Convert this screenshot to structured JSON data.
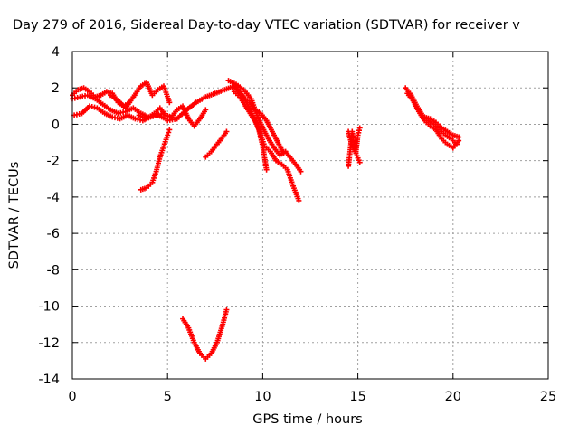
{
  "chart_data": {
    "type": "scatter",
    "title": "Day 279 of 2016, Sidereal Day-to-day VTEC variation (SDTVAR) for receiver v",
    "xlabel": "GPS time / hours",
    "ylabel": "SDTVAR / TECUs",
    "xlim": [
      0,
      25
    ],
    "ylim": [
      -14,
      4
    ],
    "xticks": [
      "0",
      "5",
      "10",
      "15",
      "20",
      "25"
    ],
    "yticks": [
      "4",
      "2",
      "0",
      "-2",
      "-4",
      "-6",
      "-8",
      "-10",
      "-12",
      "-14"
    ],
    "grid": true,
    "marker_color": "#ff0000",
    "marker": "plus",
    "series": [
      {
        "x": [
          0.0,
          0.3,
          0.6,
          0.9,
          1.2,
          1.5,
          1.8,
          2.1,
          2.4,
          2.7,
          3.0
        ],
        "y": [
          1.6,
          1.9,
          2.0,
          1.8,
          1.5,
          1.6,
          1.8,
          1.7,
          1.2,
          1.0,
          1.2
        ]
      },
      {
        "x": [
          0.0,
          0.4,
          0.8,
          1.2,
          1.6,
          2.0,
          2.4,
          2.8,
          3.2,
          3.6,
          4.0,
          4.4,
          4.8
        ],
        "y": [
          1.4,
          1.5,
          1.6,
          1.4,
          1.1,
          0.8,
          0.6,
          0.7,
          0.9,
          0.6,
          0.4,
          0.5,
          0.6
        ]
      },
      {
        "x": [
          0.1,
          0.5,
          0.9,
          1.3,
          1.7,
          2.1,
          2.5,
          2.9,
          3.3,
          3.7,
          4.1,
          4.5,
          4.9
        ],
        "y": [
          0.5,
          0.6,
          1.0,
          0.9,
          0.6,
          0.4,
          0.3,
          0.5,
          0.3,
          0.2,
          0.4,
          0.5,
          0.3
        ]
      },
      {
        "x": [
          2.0,
          2.4,
          2.8,
          3.2,
          3.6,
          3.9,
          4.2,
          4.5,
          4.8,
          5.1
        ],
        "y": [
          1.6,
          1.3,
          0.9,
          1.5,
          2.1,
          2.3,
          1.6,
          1.9,
          2.1,
          1.2
        ]
      },
      {
        "x": [
          3.5,
          3.9,
          4.3,
          4.6,
          4.9,
          5.2,
          5.5,
          5.8,
          6.1,
          6.4,
          6.7,
          7.0
        ],
        "y": [
          0.5,
          0.3,
          0.6,
          0.9,
          0.5,
          0.4,
          0.8,
          1.0,
          0.3,
          -0.1,
          0.3,
          0.8
        ]
      },
      {
        "x": [
          5.0,
          5.5,
          6.0,
          6.5,
          7.0,
          7.5,
          8.0,
          8.5,
          9.0,
          9.4,
          9.8,
          10.0,
          10.2
        ],
        "y": [
          0.2,
          0.3,
          0.8,
          1.2,
          1.5,
          1.7,
          1.9,
          2.1,
          1.5,
          0.7,
          -0.3,
          -1.2,
          -2.5
        ]
      },
      {
        "x": [
          3.6,
          3.9,
          4.2,
          4.4,
          4.6,
          4.8,
          5.0,
          5.1
        ],
        "y": [
          -3.6,
          -3.5,
          -3.2,
          -2.6,
          -1.8,
          -1.2,
          -0.6,
          -0.3
        ]
      },
      {
        "x": [
          7.0,
          7.3,
          7.6,
          7.9,
          8.1
        ],
        "y": [
          -1.8,
          -1.5,
          -1.1,
          -0.7,
          -0.4
        ]
      },
      {
        "x": [
          8.2,
          8.6,
          9.0,
          9.4,
          9.7,
          10.0,
          10.3,
          10.6,
          10.9,
          11.2,
          11.5,
          11.8,
          12.0
        ],
        "y": [
          2.4,
          2.2,
          1.9,
          1.4,
          0.5,
          -0.2,
          -0.8,
          -1.3,
          -1.7,
          -1.5,
          -1.9,
          -2.3,
          -2.6
        ]
      },
      {
        "x": [
          8.5,
          8.8,
          9.1,
          9.4,
          9.7,
          9.9,
          10.1,
          10.4,
          10.7,
          11.0,
          11.3,
          11.6,
          11.9
        ],
        "y": [
          1.8,
          1.5,
          1.0,
          0.5,
          0.0,
          -0.6,
          -1.2,
          -1.5,
          -2.0,
          -2.2,
          -2.5,
          -3.4,
          -4.2
        ]
      },
      {
        "x": [
          9.0,
          9.3,
          9.6,
          9.9,
          10.2,
          10.5,
          10.8,
          11.1
        ],
        "y": [
          1.5,
          1.2,
          0.8,
          0.6,
          0.2,
          -0.4,
          -1.0,
          -1.6
        ]
      },
      {
        "x": [
          5.8,
          6.1,
          6.4,
          6.7,
          7.0,
          7.3,
          7.6,
          7.9,
          8.1
        ],
        "y": [
          -10.7,
          -11.2,
          -12.0,
          -12.6,
          -12.9,
          -12.6,
          -12.0,
          -11.0,
          -10.2
        ]
      },
      {
        "x": [
          14.5,
          14.6,
          14.7,
          14.8,
          14.9,
          15.0,
          15.1
        ],
        "y": [
          -2.3,
          -1.4,
          -0.4,
          -1.0,
          -1.5,
          -0.6,
          -0.2
        ]
      },
      {
        "x": [
          14.5,
          14.7,
          14.9,
          15.1
        ],
        "y": [
          -0.4,
          -1.2,
          -1.6,
          -2.1
        ]
      },
      {
        "x": [
          17.5,
          17.8,
          18.1,
          18.4,
          18.7,
          19.0,
          19.3,
          19.6,
          19.9,
          20.2
        ],
        "y": [
          2.0,
          1.6,
          1.0,
          0.5,
          0.2,
          0.0,
          -0.3,
          -0.6,
          -0.8,
          -1.1
        ]
      },
      {
        "x": [
          17.6,
          17.9,
          18.2,
          18.5,
          18.8,
          19.1,
          19.4,
          19.7,
          20.0,
          20.3
        ],
        "y": [
          1.7,
          1.3,
          0.7,
          0.2,
          -0.1,
          -0.3,
          -0.8,
          -1.1,
          -1.3,
          -0.9
        ]
      },
      {
        "x": [
          18.5,
          18.8,
          19.1,
          19.4,
          19.7,
          20.0,
          20.3
        ],
        "y": [
          0.4,
          0.3,
          0.1,
          -0.2,
          -0.4,
          -0.6,
          -0.7
        ]
      }
    ]
  }
}
